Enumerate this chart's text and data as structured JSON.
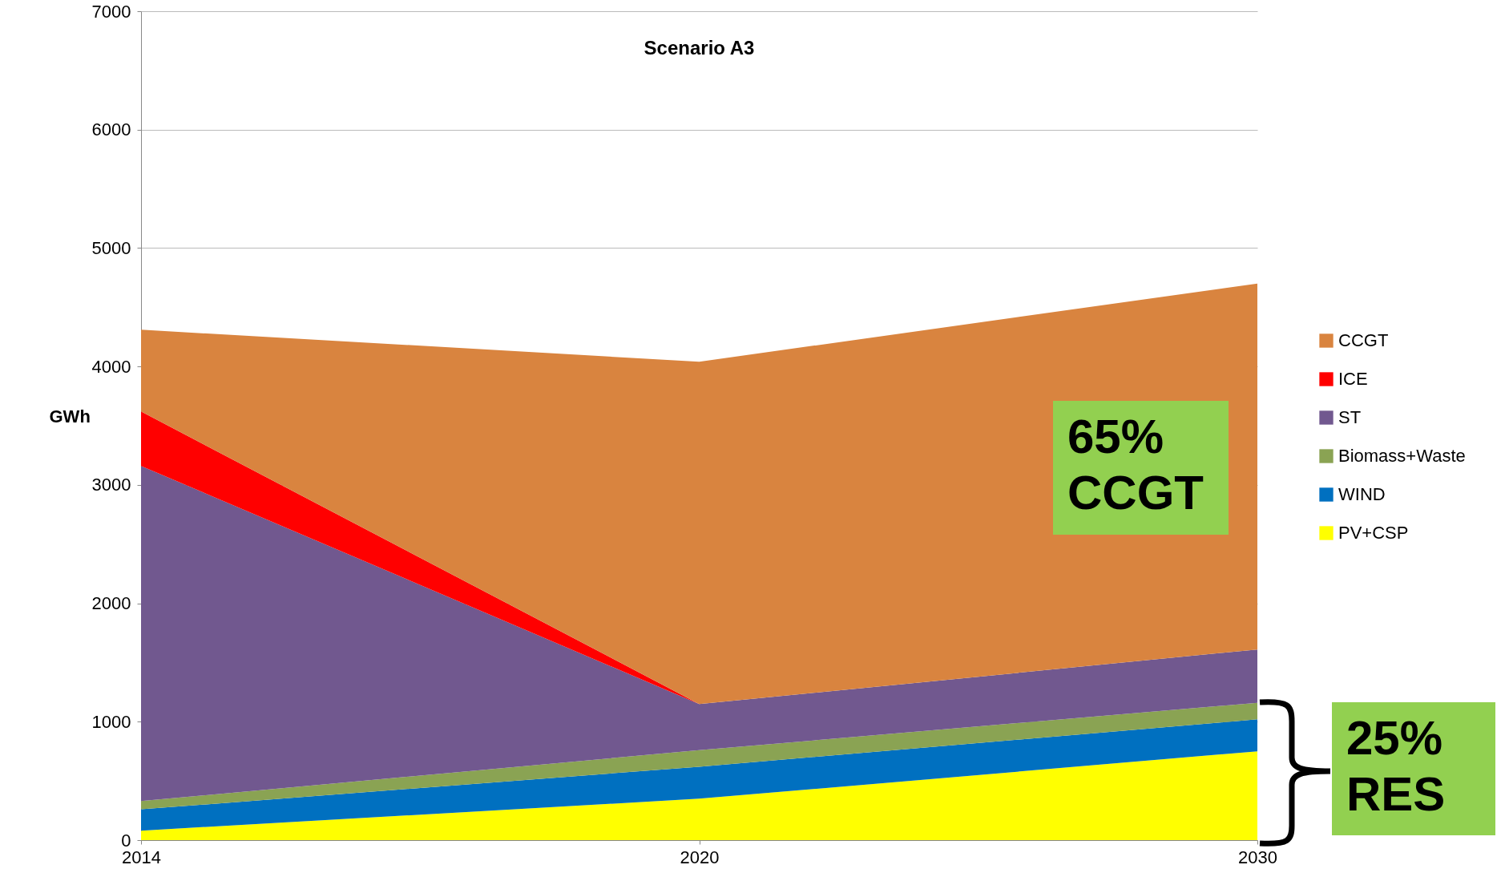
{
  "chart_data": {
    "type": "area",
    "title": "Scenario A3",
    "ylabel": "GWh",
    "stacked": true,
    "categories": [
      "2014",
      "2020",
      "2030"
    ],
    "series": [
      {
        "name": "PV+CSP",
        "color": "#ffff00",
        "values": [
          80,
          350,
          750
        ]
      },
      {
        "name": "WIND",
        "color": "#0070c0",
        "values": [
          180,
          270,
          270
        ]
      },
      {
        "name": "Biomass+Waste",
        "color": "#8aa353",
        "values": [
          70,
          140,
          140
        ]
      },
      {
        "name": "ST",
        "color": "#71588f",
        "values": [
          2830,
          390,
          450
        ]
      },
      {
        "name": "ICE",
        "color": "#ff0000",
        "values": [
          460,
          0,
          0
        ]
      },
      {
        "name": "CCGT",
        "color": "#d9843f",
        "values": [
          690,
          2890,
          3090
        ]
      }
    ],
    "ylim": [
      0,
      7000
    ],
    "yticks": [
      0,
      1000,
      2000,
      3000,
      4000,
      5000,
      6000,
      7000
    ],
    "grid": "y",
    "legend": "right",
    "annotations": [
      "65% CCGT",
      "25% RES"
    ]
  }
}
